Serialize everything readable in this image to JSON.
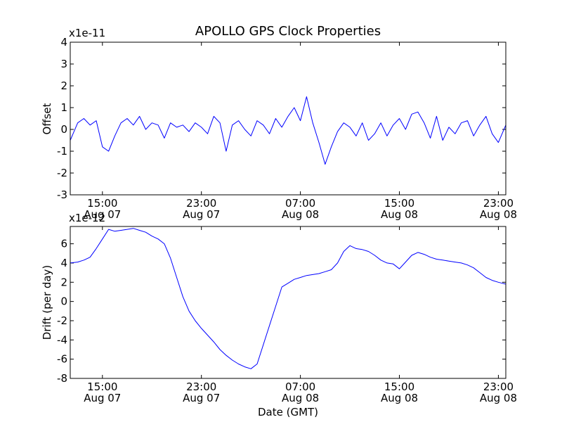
{
  "title": "APOLLO GPS Clock Properties",
  "xlabel": "Date (GMT)",
  "line_color": "#0000ff",
  "x_ticks": [
    {
      "time": "15:00",
      "date": "Aug 07",
      "hours": 15
    },
    {
      "time": "23:00",
      "date": "Aug 07",
      "hours": 23
    },
    {
      "time": "07:00",
      "date": "Aug 08",
      "hours": 31
    },
    {
      "time": "15:00",
      "date": "Aug 08",
      "hours": 39
    },
    {
      "time": "23:00",
      "date": "Aug 08",
      "hours": 47
    }
  ],
  "chart_data": [
    {
      "type": "line",
      "ylabel": "Offset",
      "scale_label": "x1e-11",
      "x_units": "hours since Aug 07 00:00 GMT",
      "xlim": [
        12.4,
        47.6
      ],
      "ylim": [
        -3,
        4
      ],
      "yticks": [
        "-3",
        "-2",
        "-1",
        "0",
        "1",
        "2",
        "3",
        "4"
      ],
      "series": [
        {
          "x": [
            12.4,
            13.0,
            13.5,
            14.0,
            14.5,
            15.0,
            15.5,
            16.0,
            16.5,
            17.0,
            17.5,
            18.0,
            18.5,
            19.0,
            19.5,
            20.0,
            20.5,
            21.0,
            21.5,
            22.0,
            22.5,
            23.0,
            23.5,
            24.0,
            24.5,
            25.0,
            25.5,
            26.0,
            26.5,
            27.0,
            27.5,
            28.0,
            28.5,
            29.0,
            29.5,
            30.0,
            30.5,
            31.0,
            31.5,
            32.0,
            32.5,
            33.0,
            33.5,
            34.0,
            34.5,
            35.0,
            35.5,
            36.0,
            36.5,
            37.0,
            37.5,
            38.0,
            38.5,
            39.0,
            39.5,
            40.0,
            40.5,
            41.0,
            41.5,
            42.0,
            42.5,
            43.0,
            43.5,
            44.0,
            44.5,
            45.0,
            45.5,
            46.0,
            46.5,
            47.0,
            47.6
          ],
          "y": [
            -0.5,
            0.3,
            0.5,
            0.2,
            0.4,
            -0.8,
            -1.0,
            -0.3,
            0.3,
            0.5,
            0.2,
            0.6,
            0.0,
            0.3,
            0.2,
            -0.4,
            0.3,
            0.1,
            0.2,
            -0.1,
            0.3,
            0.1,
            -0.2,
            0.6,
            0.3,
            -1.0,
            0.2,
            0.4,
            0.0,
            -0.3,
            0.4,
            0.2,
            -0.2,
            0.5,
            0.1,
            0.6,
            1.0,
            0.4,
            1.5,
            0.3,
            -0.6,
            -1.6,
            -0.8,
            -0.1,
            0.3,
            0.1,
            -0.3,
            0.3,
            -0.5,
            -0.2,
            0.3,
            -0.3,
            0.2,
            0.5,
            0.0,
            0.7,
            0.8,
            0.3,
            -0.4,
            0.6,
            -0.5,
            0.1,
            -0.2,
            0.3,
            0.4,
            -0.3,
            0.2,
            0.6,
            -0.2,
            -0.6,
            0.2
          ]
        }
      ]
    },
    {
      "type": "line",
      "ylabel": "Drift (per day)",
      "scale_label": "x1e-12",
      "x_units": "hours since Aug 07 00:00 GMT",
      "xlim": [
        12.4,
        47.6
      ],
      "ylim": [
        -8,
        7.8
      ],
      "yticks": [
        "-8",
        "-6",
        "-4",
        "-2",
        "0",
        "2",
        "4",
        "6"
      ],
      "series": [
        {
          "x": [
            12.4,
            13.0,
            13.5,
            14.0,
            14.5,
            15.0,
            15.5,
            16.0,
            16.5,
            17.0,
            17.5,
            18.0,
            18.5,
            19.0,
            19.5,
            20.0,
            20.5,
            21.0,
            21.5,
            22.0,
            22.5,
            23.0,
            23.5,
            24.0,
            24.5,
            25.0,
            25.5,
            26.0,
            26.5,
            27.0,
            27.5,
            28.0,
            28.5,
            29.0,
            29.5,
            30.0,
            30.5,
            31.0,
            31.5,
            32.0,
            32.5,
            33.0,
            33.5,
            34.0,
            34.5,
            35.0,
            35.5,
            36.0,
            36.5,
            37.0,
            37.5,
            38.0,
            38.5,
            39.0,
            39.5,
            40.0,
            40.5,
            41.0,
            41.5,
            42.0,
            42.5,
            43.0,
            43.5,
            44.0,
            44.5,
            45.0,
            45.5,
            46.0,
            46.5,
            47.0,
            47.6
          ],
          "y": [
            4.0,
            4.1,
            4.3,
            4.6,
            5.5,
            6.5,
            7.5,
            7.3,
            7.4,
            7.5,
            7.6,
            7.4,
            7.2,
            6.8,
            6.5,
            6.0,
            4.5,
            2.5,
            0.5,
            -1.0,
            -2.0,
            -2.8,
            -3.5,
            -4.2,
            -5.0,
            -5.6,
            -6.1,
            -6.5,
            -6.8,
            -7.0,
            -6.5,
            -4.5,
            -2.5,
            -0.5,
            1.5,
            1.9,
            2.3,
            2.5,
            2.7,
            2.8,
            2.9,
            3.1,
            3.3,
            4.0,
            5.2,
            5.8,
            5.5,
            5.4,
            5.2,
            4.8,
            4.3,
            4.0,
            3.9,
            3.4,
            4.1,
            4.8,
            5.1,
            4.9,
            4.6,
            4.4,
            4.3,
            4.2,
            4.1,
            4.0,
            3.8,
            3.5,
            3.0,
            2.5,
            2.2,
            2.0,
            1.8
          ]
        }
      ]
    }
  ]
}
